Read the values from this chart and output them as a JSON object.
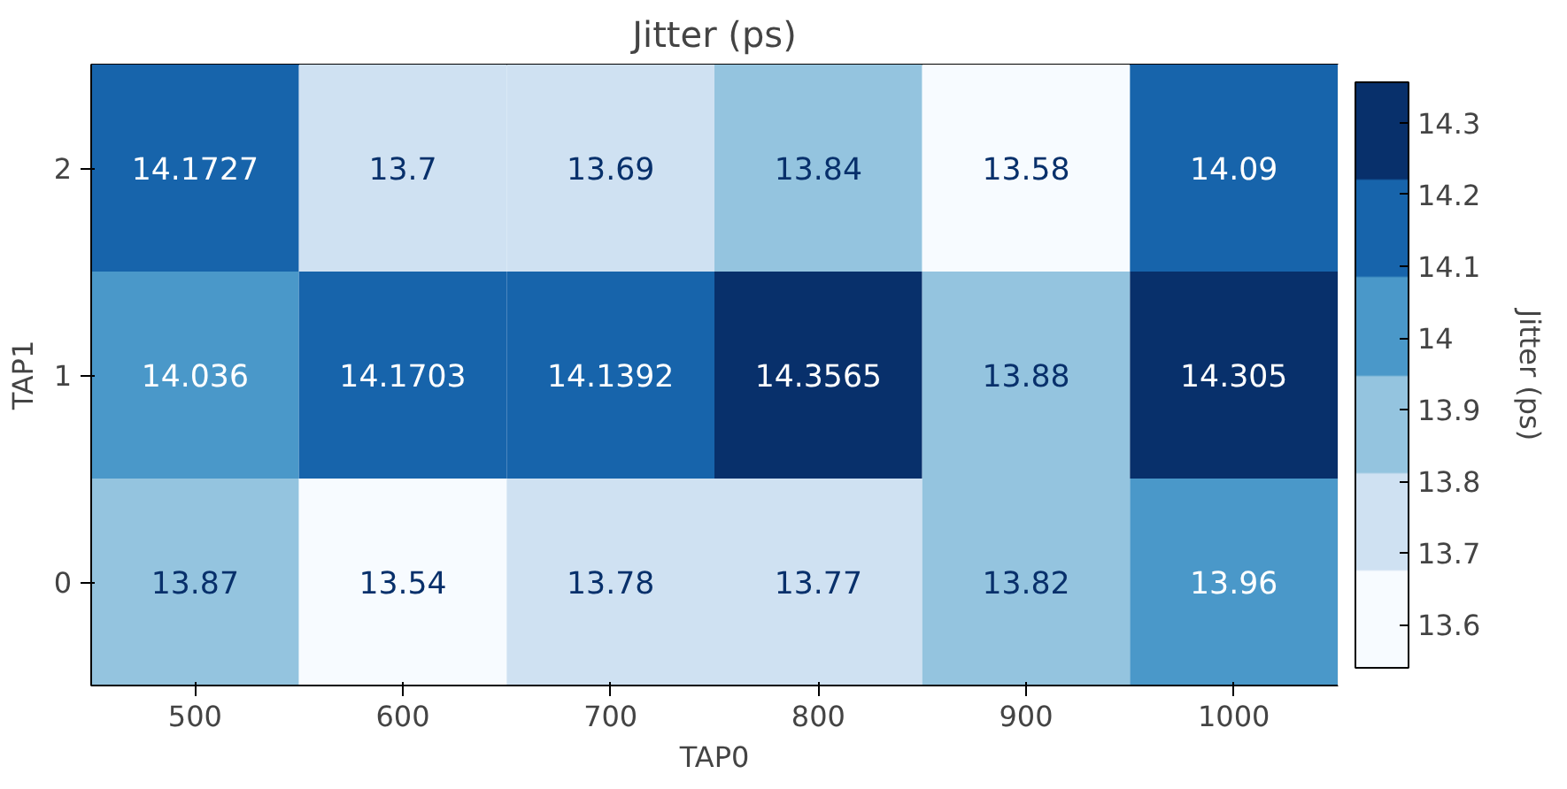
{
  "chart_data": {
    "type": "heatmap",
    "title": "Jitter (ps)",
    "xlabel": "TAP0",
    "ylabel": "TAP1",
    "clabel": "Jitter (ps)",
    "categories": [
      "500",
      "600",
      "700",
      "800",
      "900",
      "1000"
    ],
    "y_categories": [
      "2",
      "1",
      "0"
    ],
    "cells": [
      [
        14.1727,
        13.7,
        13.69,
        13.84,
        13.58,
        14.09
      ],
      [
        14.036,
        14.1703,
        14.1392,
        14.3565,
        13.88,
        14.305
      ],
      [
        13.87,
        13.54,
        13.78,
        13.77,
        13.82,
        13.96
      ]
    ],
    "colors": [
      "#f7fbff",
      "#cfe1f2",
      "#94c4df",
      "#4a98c9",
      "#1764ab",
      "#08306b"
    ],
    "data_labels": true,
    "clim": [
      13.54,
      14.3565
    ],
    "cticks": [
      13.6,
      13.7,
      13.8,
      13.9,
      14.0,
      14.1,
      14.2,
      14.3
    ]
  }
}
